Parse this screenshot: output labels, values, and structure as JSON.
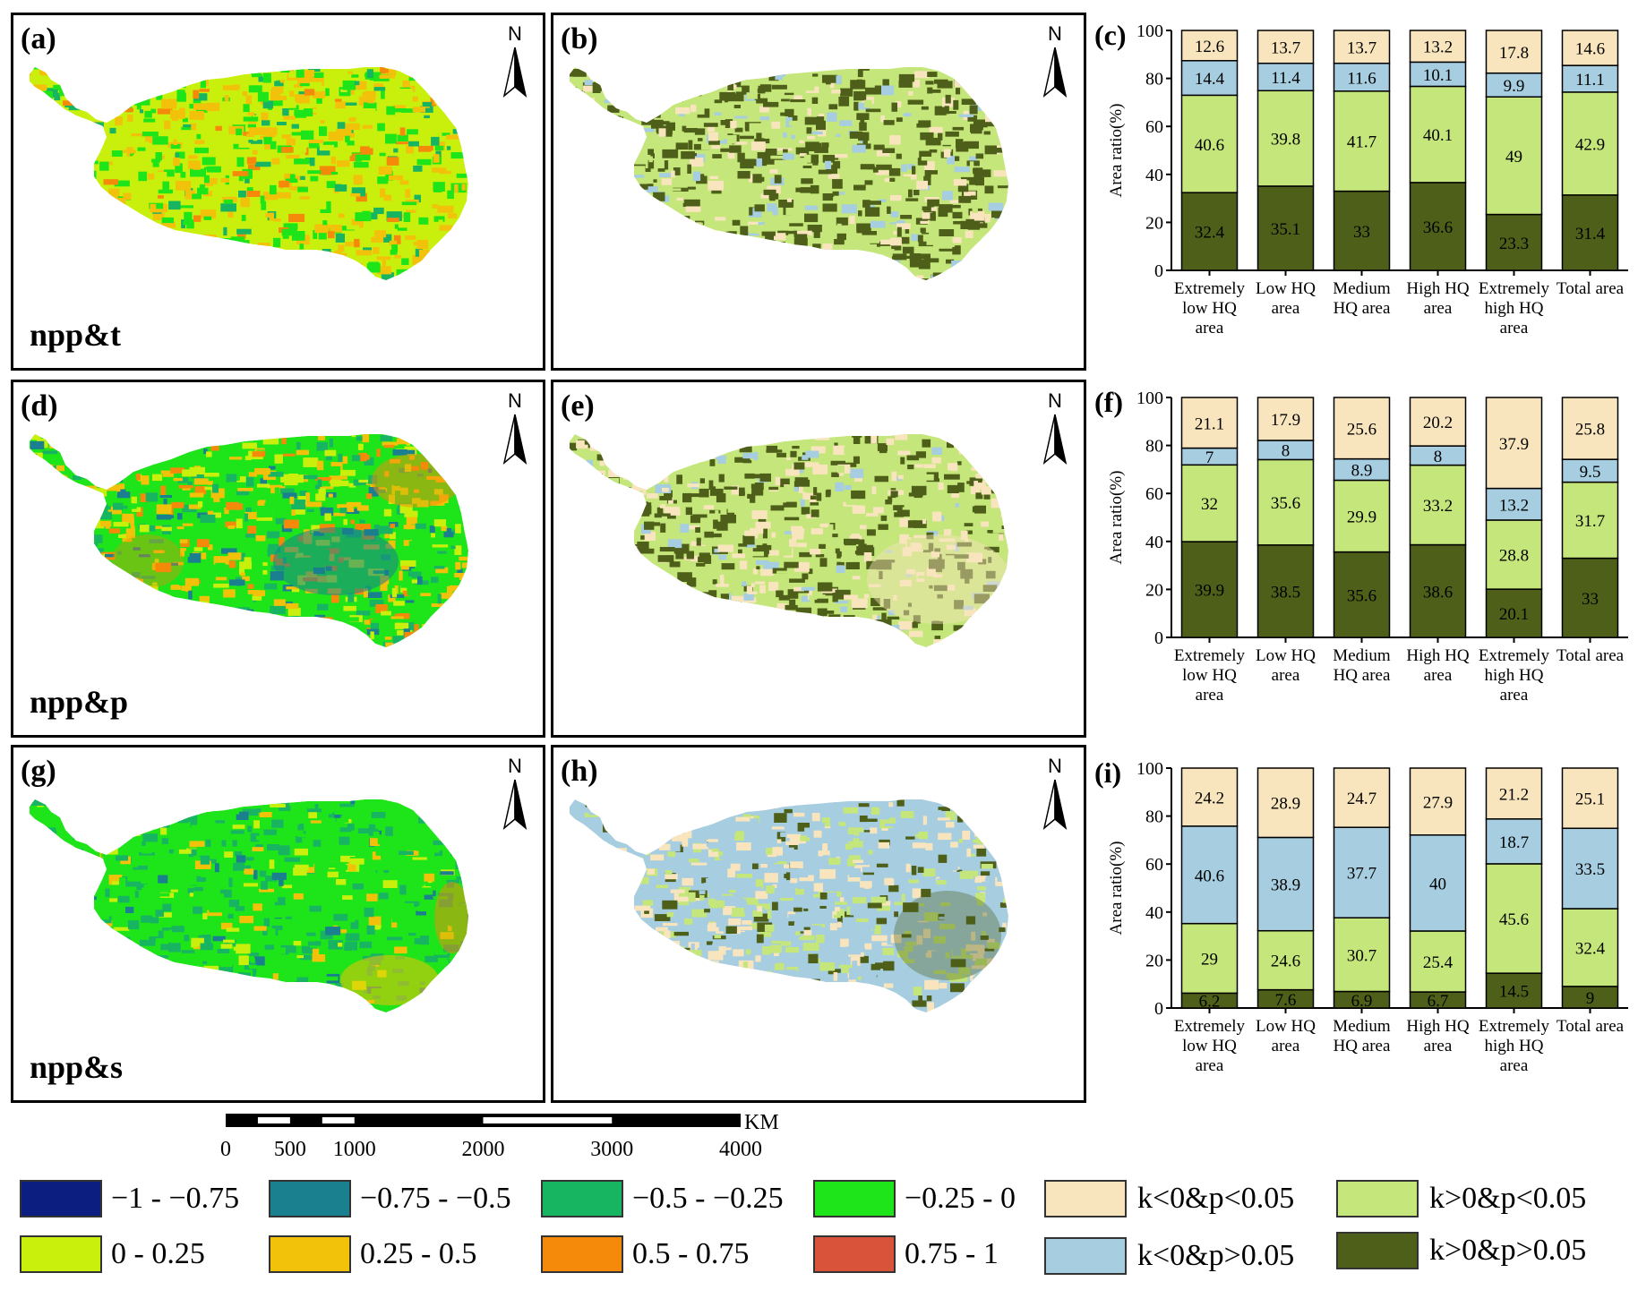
{
  "panels": [
    {
      "id": "a",
      "label": "(a)",
      "var": "npp&t"
    },
    {
      "id": "b",
      "label": "(b)"
    },
    {
      "id": "d",
      "label": "(d)",
      "var": "npp&p"
    },
    {
      "id": "e",
      "label": "(e)"
    },
    {
      "id": "g",
      "label": "(g)",
      "var": "npp&s"
    },
    {
      "id": "h",
      "label": "(h)"
    }
  ],
  "north_label": "N",
  "scale_bar": {
    "unit": "KM",
    "ticks": [
      "0",
      "500",
      "1000",
      "2000",
      "3000",
      "4000"
    ]
  },
  "colors": {
    "corr": [
      "#0c1f80",
      "#1a7f8f",
      "#17b561",
      "#1ee41a",
      "#c8f00c",
      "#f2c10a",
      "#f58a0a",
      "#d9533b"
    ],
    "sig": {
      "neg_sig": "#f8e5bd",
      "pos_sig": "#c4e67a",
      "neg_nsig": "#a6cde0",
      "pos_nsig": "#4e5f1a"
    }
  },
  "legend": {
    "corr": [
      "−1 - −0.75",
      "−0.75 - −0.5",
      "−0.5 - −0.25",
      "−0.25 - 0",
      "0 - 0.25",
      "0.25 - 0.5",
      "0.5 - 0.75",
      "0.75 - 1"
    ],
    "sig": [
      "k<0&p<0.05",
      "k>0&p<0.05",
      "k<0&p>0.05",
      "k>0&p>0.05"
    ]
  },
  "chart_data": [
    {
      "panel": "(c)",
      "type": "bar",
      "stacked": true,
      "ylabel": "Area ratio(%)",
      "ylim": [
        0,
        100
      ],
      "yticks": [
        0,
        20,
        40,
        60,
        80,
        100
      ],
      "categories": [
        "Extremely low HQ area",
        "Low HQ area",
        "Medium HQ area",
        "High HQ area",
        "Extremely high HQ area",
        "Total area"
      ],
      "category_lines": [
        [
          "Extremely",
          "low HQ",
          "area"
        ],
        [
          "Low HQ",
          "area"
        ],
        [
          "Medium",
          "HQ area"
        ],
        [
          "High HQ",
          "area"
        ],
        [
          "Extremely",
          "high HQ",
          "area"
        ],
        [
          "Total area"
        ]
      ],
      "series": [
        {
          "name": "k>0&p>0.05",
          "values": [
            32.4,
            35.1,
            33,
            36.6,
            23.3,
            31.4
          ]
        },
        {
          "name": "k>0&p<0.05",
          "values": [
            40.6,
            39.8,
            41.7,
            40.1,
            49,
            42.9
          ]
        },
        {
          "name": "k<0&p>0.05",
          "values": [
            14.4,
            11.4,
            11.6,
            10.1,
            9.9,
            11.1
          ]
        },
        {
          "name": "k<0&p<0.05",
          "values": [
            12.6,
            13.7,
            13.7,
            13.2,
            17.8,
            14.6
          ]
        }
      ]
    },
    {
      "panel": "(f)",
      "type": "bar",
      "stacked": true,
      "ylabel": "Area ratio(%)",
      "ylim": [
        0,
        100
      ],
      "yticks": [
        0,
        20,
        40,
        60,
        80,
        100
      ],
      "categories": [
        "Extremely low HQ area",
        "Low HQ area",
        "Medium HQ area",
        "High HQ area",
        "Extremely high HQ area",
        "Total area"
      ],
      "category_lines": [
        [
          "Extremely",
          "low HQ",
          "area"
        ],
        [
          "Low HQ",
          "area"
        ],
        [
          "Medium",
          "HQ area"
        ],
        [
          "High HQ",
          "area"
        ],
        [
          "Extremely",
          "high HQ",
          "area"
        ],
        [
          "Total area"
        ]
      ],
      "series": [
        {
          "name": "k>0&p>0.05",
          "values": [
            39.9,
            38.5,
            35.6,
            38.6,
            20.1,
            33
          ]
        },
        {
          "name": "k>0&p<0.05",
          "values": [
            32,
            35.6,
            29.9,
            33.2,
            28.8,
            31.7
          ]
        },
        {
          "name": "k<0&p>0.05",
          "values": [
            7,
            8,
            8.9,
            8,
            13.2,
            9.5
          ]
        },
        {
          "name": "k<0&p<0.05",
          "values": [
            21.1,
            17.9,
            25.6,
            20.2,
            37.9,
            25.8
          ]
        }
      ]
    },
    {
      "panel": "(i)",
      "type": "bar",
      "stacked": true,
      "ylabel": "Area ratio(%)",
      "ylim": [
        0,
        100
      ],
      "yticks": [
        0,
        20,
        40,
        60,
        80,
        100
      ],
      "categories": [
        "Extremely low HQ area",
        "Low HQ area",
        "Medium HQ area",
        "High HQ area",
        "Extremely high HQ area",
        "Total area"
      ],
      "category_lines": [
        [
          "Extremely",
          "low HQ",
          "area"
        ],
        [
          "Low HQ",
          "area"
        ],
        [
          "Medium",
          "HQ area"
        ],
        [
          "High HQ",
          "area"
        ],
        [
          "Extremely",
          "high HQ",
          "area"
        ],
        [
          "Total area"
        ]
      ],
      "series": [
        {
          "name": "k>0&p>0.05",
          "values": [
            6.2,
            7.6,
            6.9,
            6.7,
            14.5,
            9
          ]
        },
        {
          "name": "k>0&p<0.05",
          "values": [
            29,
            24.6,
            30.7,
            25.4,
            45.6,
            32.4
          ]
        },
        {
          "name": "k<0&p>0.05",
          "values": [
            40.6,
            38.9,
            37.7,
            40,
            18.7,
            33.5
          ]
        },
        {
          "name": "k<0&p<0.05",
          "values": [
            24.2,
            28.9,
            24.7,
            27.9,
            21.2,
            25.1
          ]
        }
      ]
    }
  ]
}
